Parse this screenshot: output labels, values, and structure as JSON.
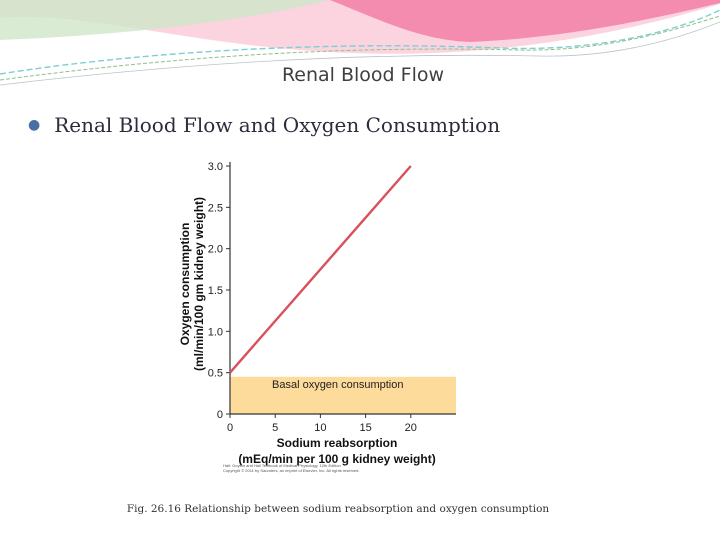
{
  "slide": {
    "title": "Renal Blood Flow",
    "bullet": "Renal Blood Flow and Oxygen Consumption",
    "caption": "Fig. 26.16 Relationship between sodium reabsorption and oxygen consumption",
    "credit_lines": [
      "Hall: Guyton and Hall Textbook of Medical Physiology, 12th Edition",
      "Copyright © 2011 by Saunders, an imprint of Elsevier, Inc. All rights reserved."
    ]
  },
  "colors": {
    "line": "#d9505a",
    "basal_band": "#fcdb9b",
    "axis": "#333333",
    "banner_pink": "#f27fa7",
    "banner_teal": "#7ecfd0",
    "banner_green": "#8dbf8b",
    "title_text": "#3f3f3f",
    "bullet_text": "#2c2c3c"
  },
  "chart_data": {
    "type": "line",
    "x": [
      0,
      20
    ],
    "y": [
      0.5,
      3.0
    ],
    "xlabel": "Sodium reabsorption",
    "xlabel_2": "(mEq/min per 100 g kidney weight)",
    "ylabel": "Oxygen consumption",
    "ylabel_2": "(ml/min/100 gm kidney weight)",
    "xlim": [
      0,
      25
    ],
    "ylim": [
      0,
      3.0
    ],
    "x_ticks": [
      "0",
      "5",
      "10",
      "15",
      "20"
    ],
    "y_ticks": [
      "0",
      "0.5",
      "1.0",
      "1.5",
      "2.0",
      "2.5",
      "3.0"
    ],
    "band": {
      "label": "Basal oxygen consumption",
      "y_from": 0,
      "y_to": 0.45
    },
    "grid": false
  }
}
